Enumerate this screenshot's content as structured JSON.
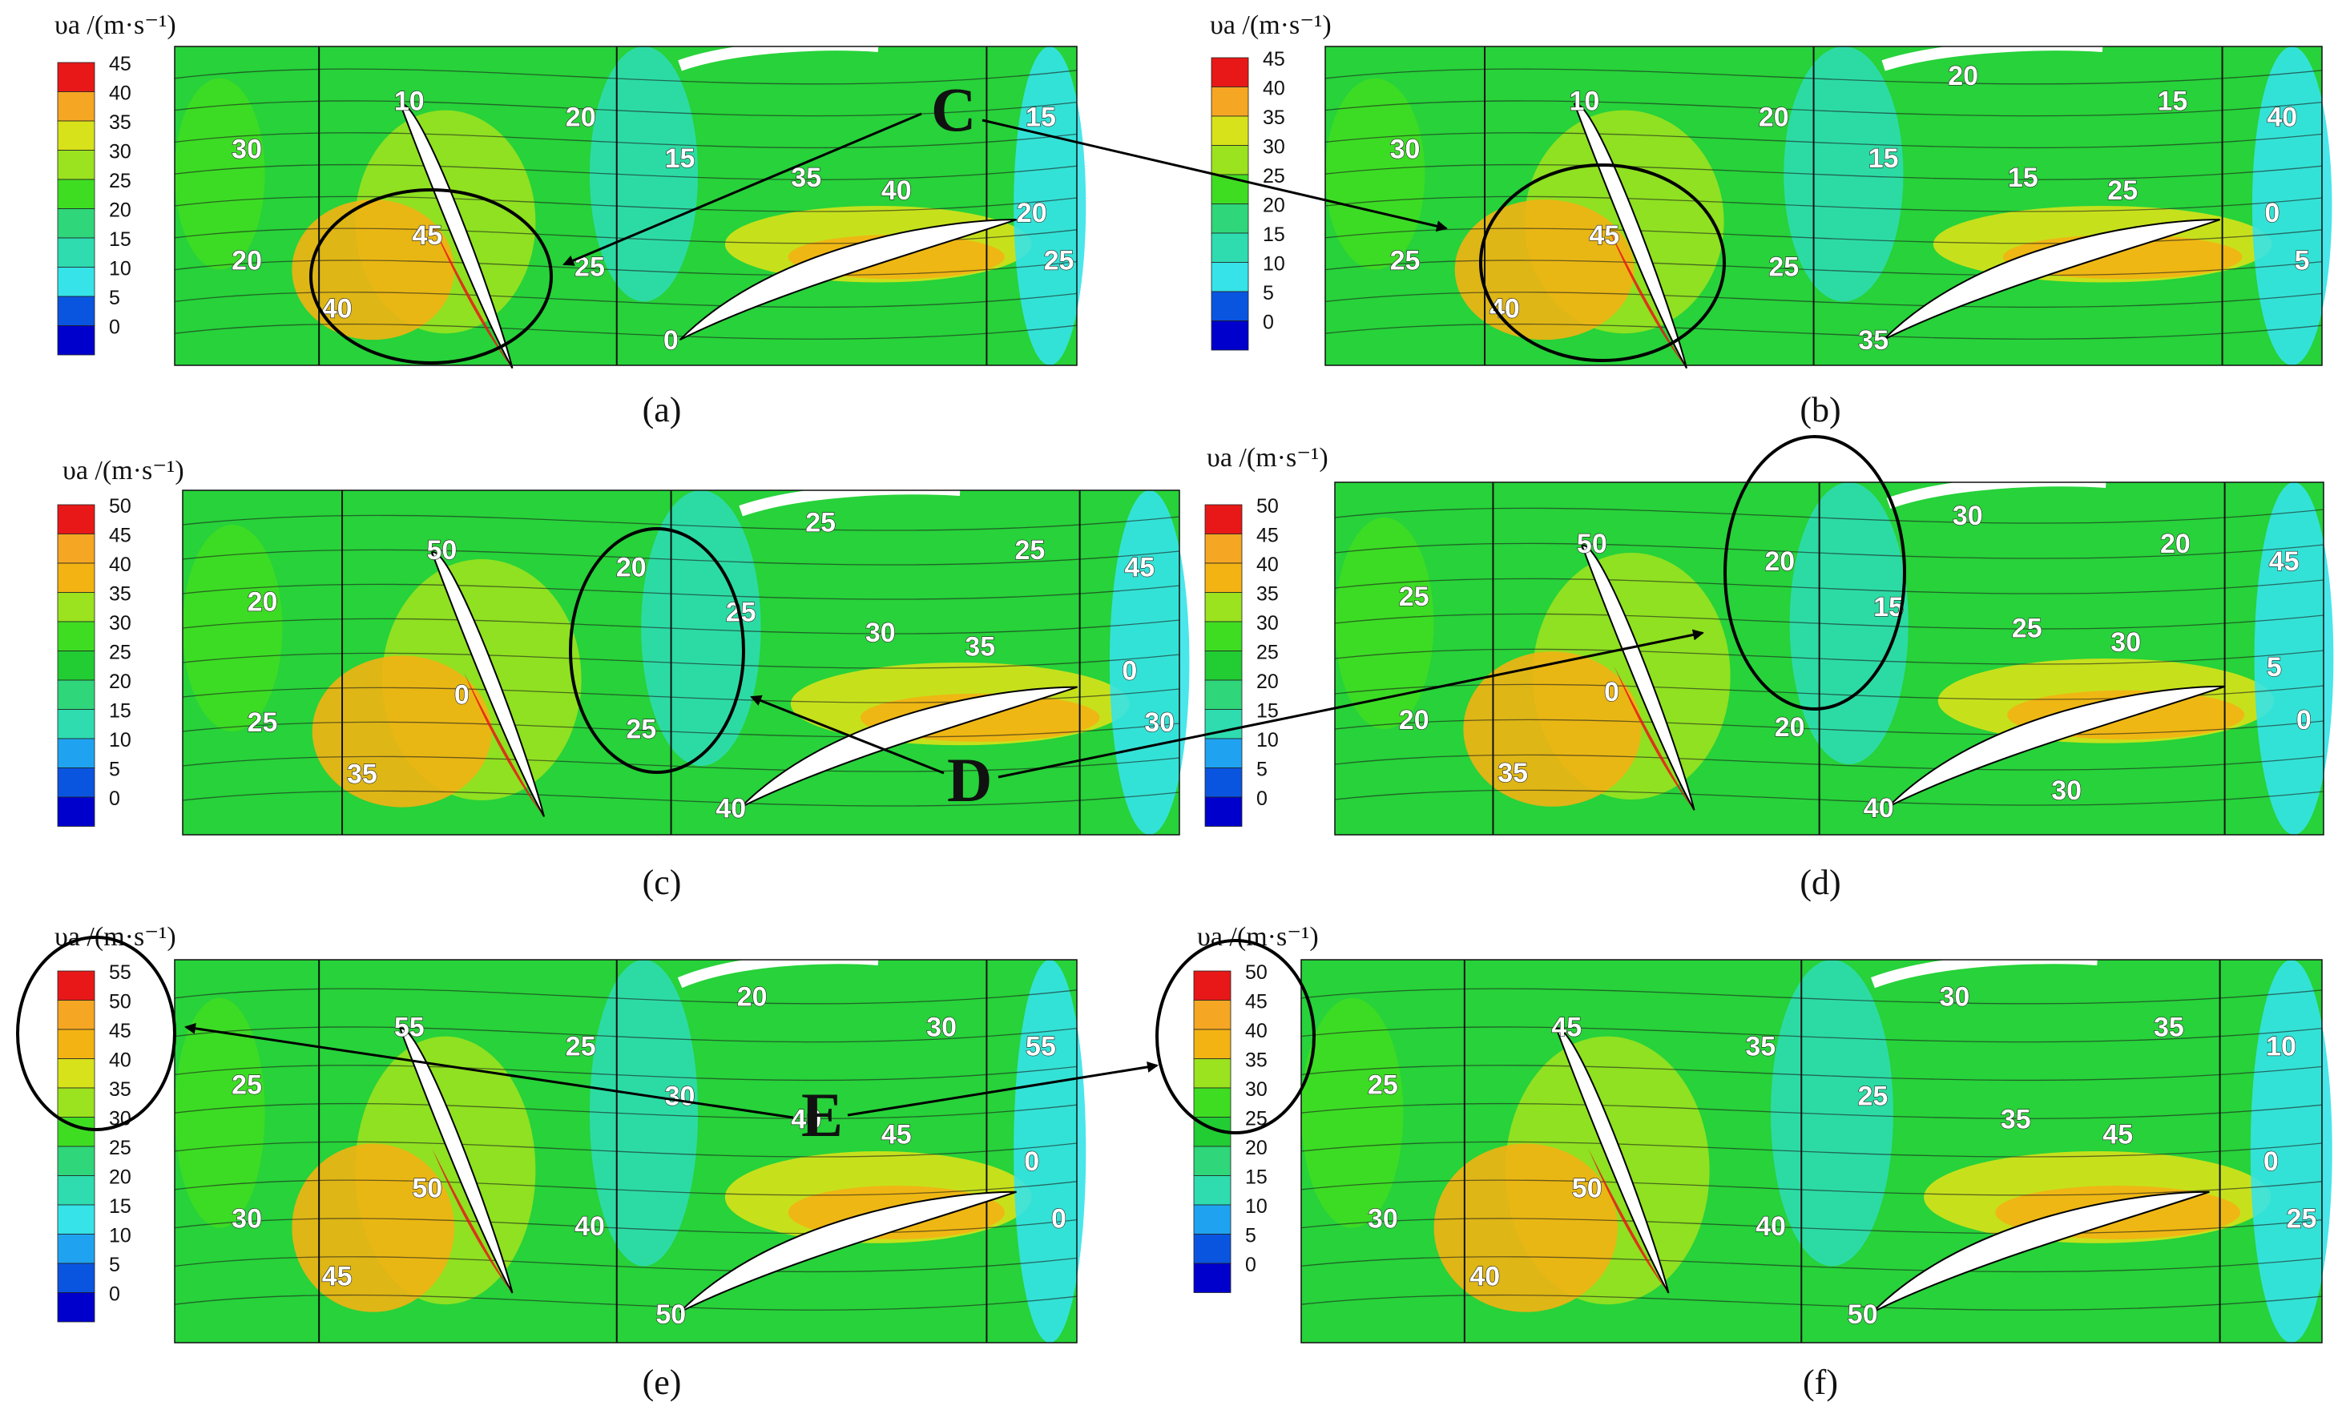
{
  "colors": {
    "scale": [
      "#0000cc",
      "#0a55e0",
      "#1fa3f0",
      "#35e3e8",
      "#2edcb0",
      "#2fd67a",
      "#22cc33",
      "#3fdd22",
      "#9be21f",
      "#d8e21a",
      "#f3b313",
      "#f5a623",
      "#e81818"
    ],
    "background_field": "#27d23a",
    "blade": "#ffffff",
    "ellipse": "#000000"
  },
  "axis_title": "υa /(m·s⁻¹)",
  "panels": [
    {
      "id": "a",
      "caption": "(a)",
      "legend": [
        "45",
        "40",
        "35",
        "30",
        "25",
        "20",
        "15",
        "10",
        "5",
        "0"
      ],
      "labels": [
        "30",
        "20",
        "40",
        "45",
        "10",
        "20",
        "15",
        "25",
        "35",
        "40",
        "0",
        "15",
        "20",
        "25"
      ]
    },
    {
      "id": "b",
      "caption": "(b)",
      "legend": [
        "45",
        "40",
        "35",
        "30",
        "25",
        "20",
        "15",
        "10",
        "5",
        "0"
      ],
      "labels": [
        "30",
        "25",
        "40",
        "45",
        "10",
        "20",
        "15",
        "25",
        "15",
        "25",
        "35",
        "40",
        "0",
        "5",
        "20",
        "15"
      ]
    },
    {
      "id": "c",
      "caption": "(c)",
      "legend": [
        "50",
        "45",
        "40",
        "35",
        "30",
        "25",
        "20",
        "15",
        "10",
        "5",
        "0"
      ],
      "labels": [
        "20",
        "25",
        "35",
        "0",
        "50",
        "20",
        "25",
        "25",
        "30",
        "35",
        "40",
        "45",
        "0",
        "30",
        "25",
        "25"
      ]
    },
    {
      "id": "d",
      "caption": "(d)",
      "legend": [
        "50",
        "45",
        "40",
        "35",
        "30",
        "25",
        "20",
        "15",
        "10",
        "5",
        "0"
      ],
      "labels": [
        "25",
        "20",
        "35",
        "0",
        "50",
        "20",
        "15",
        "20",
        "25",
        "30",
        "40",
        "45",
        "5",
        "0",
        "30",
        "20",
        "30"
      ]
    },
    {
      "id": "e",
      "caption": "(e)",
      "legend": [
        "55",
        "50",
        "45",
        "40",
        "35",
        "30",
        "25",
        "20",
        "15",
        "10",
        "5",
        "0"
      ],
      "labels": [
        "25",
        "30",
        "45",
        "50",
        "55",
        "25",
        "30",
        "40",
        "40",
        "45",
        "50",
        "55",
        "0",
        "0",
        "20",
        "30"
      ]
    },
    {
      "id": "f",
      "caption": "(f)",
      "legend": [
        "50",
        "45",
        "40",
        "35",
        "30",
        "25",
        "20",
        "15",
        "10",
        "5",
        "0"
      ],
      "labels": [
        "25",
        "30",
        "40",
        "50",
        "45",
        "35",
        "25",
        "40",
        "35",
        "45",
        "50",
        "10",
        "0",
        "25",
        "30",
        "35"
      ]
    }
  ],
  "callouts": {
    "C": "C",
    "D": "D",
    "E": "E"
  }
}
